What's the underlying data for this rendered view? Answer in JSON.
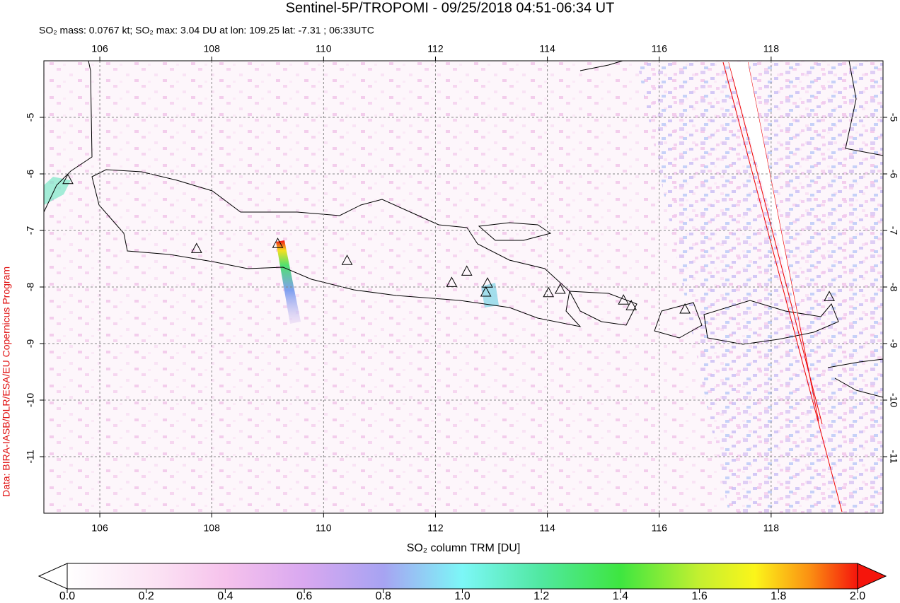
{
  "chart_data": {
    "type": "map",
    "title": "Sentinel-5P/TROPOMI - 09/25/2018 04:51-06:34 UT",
    "subtitle": "SO₂ mass: 0.0767 kt; SO₂ max: 3.04 DU at lon: 109.25 lat: -7.31 ; 06:33UTC",
    "side_note": "Data: BIRA-IASB/DLR/ESA/EU Copernicus Program",
    "xlim": [
      105,
      120
    ],
    "ylim": [
      -12,
      -4
    ],
    "xticks": [
      106,
      108,
      110,
      112,
      114,
      116,
      118
    ],
    "yticks": [
      -5,
      -6,
      -7,
      -8,
      -9,
      -10,
      -11
    ],
    "grid": true,
    "volcanoes": {
      "lon": [
        105.43,
        107.73,
        109.18,
        110.42,
        112.29,
        112.56,
        112.93,
        112.9,
        114.02,
        114.23,
        115.36,
        115.5,
        116.46,
        119.04
      ],
      "lat": [
        -6.11,
        -7.33,
        -7.24,
        -7.54,
        -7.93,
        -7.73,
        -7.94,
        -8.1,
        -8.11,
        -8.05,
        -8.24,
        -8.34,
        -8.4,
        -8.18
      ]
    },
    "colorbar": {
      "label": "SO₂ column TRM [DU]",
      "lim": [
        0,
        2
      ],
      "ticks": [
        {
          "value": 0,
          "label": "0.0"
        },
        {
          "value": 0.2,
          "label": "0.2"
        },
        {
          "value": 0.4,
          "label": "0.4"
        },
        {
          "value": 0.6,
          "label": "0.6"
        },
        {
          "value": 0.8,
          "label": "0.8"
        },
        {
          "value": 1,
          "label": "1.0"
        },
        {
          "value": 1.2,
          "label": "1.2"
        },
        {
          "value": 1.4,
          "label": "1.4"
        },
        {
          "value": 1.6,
          "label": "1.6"
        },
        {
          "value": 1.8,
          "label": "1.8"
        },
        {
          "value": 2,
          "label": "2.0"
        }
      ]
    }
  }
}
